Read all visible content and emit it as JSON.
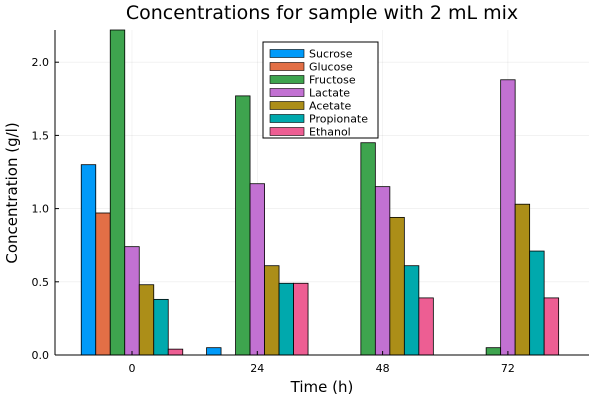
{
  "chart_data": {
    "type": "bar",
    "title": "Concentrations for sample with 2 mL mix",
    "xlabel": "Time (h)",
    "ylabel": "Concentration (g/l)",
    "categories": [
      "0",
      "24",
      "48",
      "72"
    ],
    "yticks": [
      0.0,
      0.5,
      1.0,
      1.5,
      2.0
    ],
    "ytick_labels": [
      "0.0",
      "0.5",
      "1.0",
      "1.5",
      "2.0"
    ],
    "ylim": [
      0,
      2.22
    ],
    "grid": true,
    "legend_position": "top-center",
    "series": [
      {
        "name": "Sucrose",
        "color": "#009af9",
        "values": [
          1.3,
          0.05,
          0.0,
          0.0
        ]
      },
      {
        "name": "Glucose",
        "color": "#e26f46",
        "values": [
          0.97,
          0.0,
          0.0,
          0.0
        ]
      },
      {
        "name": "Fructose",
        "color": "#3ea44e",
        "values": [
          2.22,
          1.77,
          1.45,
          0.05
        ]
      },
      {
        "name": "Lactate",
        "color": "#c271d2",
        "values": [
          0.74,
          1.17,
          1.15,
          1.88
        ]
      },
      {
        "name": "Acetate",
        "color": "#ac8e18",
        "values": [
          0.48,
          0.61,
          0.94,
          1.03
        ]
      },
      {
        "name": "Propionate",
        "color": "#00a9ad",
        "values": [
          0.38,
          0.49,
          0.61,
          0.71
        ]
      },
      {
        "name": "Ethanol",
        "color": "#ed5e93",
        "values": [
          0.04,
          0.49,
          0.39,
          0.39
        ]
      }
    ]
  }
}
